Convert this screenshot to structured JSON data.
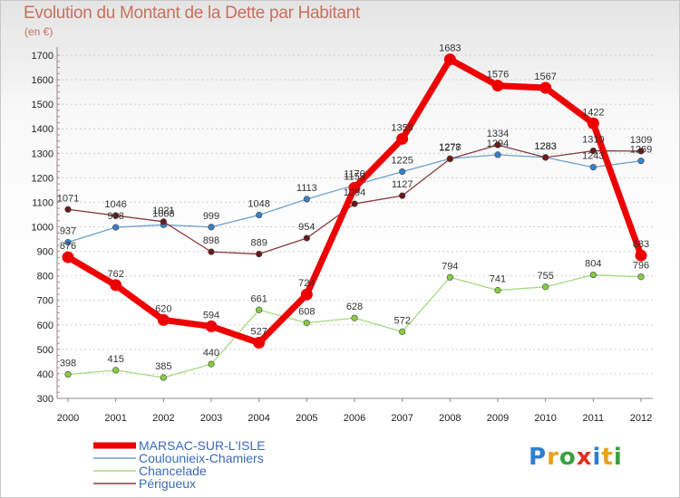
{
  "title": "Evolution du Montant de la Dette par Habitant",
  "unit": "(en €)",
  "logo": {
    "text": "Proxiti",
    "letters": [
      {
        "ch": "P",
        "color": "#2f7fd0"
      },
      {
        "ch": "r",
        "color": "#e8a020"
      },
      {
        "ch": "o",
        "color": "#3aa040"
      },
      {
        "ch": "x",
        "color": "#e03020"
      },
      {
        "ch": "i",
        "color": "#2f7fd0"
      },
      {
        "ch": "t",
        "color": "#e8a020"
      },
      {
        "ch": "i",
        "color": "#3aa040"
      }
    ]
  },
  "chart_data": {
    "type": "line",
    "title": "Evolution du Montant de la Dette par Habitant",
    "ylabel": "(en €)",
    "xlabel": "",
    "ylim": [
      300,
      1700
    ],
    "yticks": [
      300,
      400,
      500,
      600,
      700,
      800,
      900,
      1000,
      1100,
      1200,
      1300,
      1400,
      1500,
      1600,
      1700
    ],
    "x": [
      "2000",
      "2001",
      "2002",
      "2003",
      "2004",
      "2005",
      "2006",
      "2007",
      "2008",
      "2009",
      "2010",
      "2011",
      "2012"
    ],
    "grid": "horizontal dashed",
    "legend": "bottom-left",
    "series": [
      {
        "name": "Couloun­ieix-Chamiers",
        "color": "#6ea0d0",
        "marker": "#3a80c8",
        "width": 1.3,
        "values": [
          937,
          998,
          1008,
          999,
          1048,
          1113,
          1170,
          1225,
          1278,
          1294,
          1283,
          1243,
          1269
        ],
        "labels": [
          "937",
          "998",
          "1008",
          "999",
          "1048",
          "1113",
          "1170",
          "1225",
          "1278",
          "1294",
          "1283",
          "1243",
          "1269"
        ]
      },
      {
        "name": "Chancelade",
        "color": "#a8d880",
        "marker": "#88cc44",
        "width": 1.3,
        "values": [
          398,
          415,
          385,
          440,
          661,
          608,
          628,
          572,
          794,
          741,
          755,
          804,
          796
        ],
        "labels": [
          "398",
          "415",
          "385",
          "440",
          "661",
          "608",
          "628",
          "572",
          "794",
          "741",
          "755",
          "804",
          "796"
        ]
      },
      {
        "name": "Périgueux",
        "color": "#8a3a3a",
        "marker": "#6a1a1a",
        "width": 1.3,
        "values": [
          1071,
          1046,
          1021,
          898,
          889,
          954,
          1094,
          1127,
          1277,
          1334,
          1283,
          1310,
          1309
        ],
        "labels": [
          "1071",
          "1046",
          "1021",
          "898",
          "889",
          "954",
          "1094",
          "1127",
          "1277",
          "1334",
          "1283",
          "1310",
          "1309"
        ]
      },
      {
        "name": "MARSAC-SUR-L'ISLE",
        "color": "#ee0000",
        "marker": "#ee0000",
        "width": 7,
        "values": [
          876,
          762,
          620,
          594,
          527,
          724,
          1159,
          1359,
          1683,
          1576,
          1567,
          1422,
          883
        ],
        "labels": [
          "876",
          "762",
          "620",
          "594",
          "527",
          "724",
          "1159",
          "1359",
          "1683",
          "1576",
          "1567",
          "1422",
          "883"
        ]
      }
    ]
  },
  "legend": [
    {
      "label": "MARSAC-SUR-L'ISLE",
      "color": "#ee0000",
      "text_color": "#3a6ab8",
      "thick": true
    },
    {
      "label": "Coulounieix-Chamiers",
      "color": "#6ea0d0",
      "text_color": "#3a6ab8",
      "thick": false
    },
    {
      "label": "Chancelade",
      "color": "#a8d880",
      "text_color": "#3a6ab8",
      "thick": false
    },
    {
      "label": "Périgueux",
      "color": "#8a3a3a",
      "text_color": "#3a6ab8",
      "thick": false
    }
  ]
}
